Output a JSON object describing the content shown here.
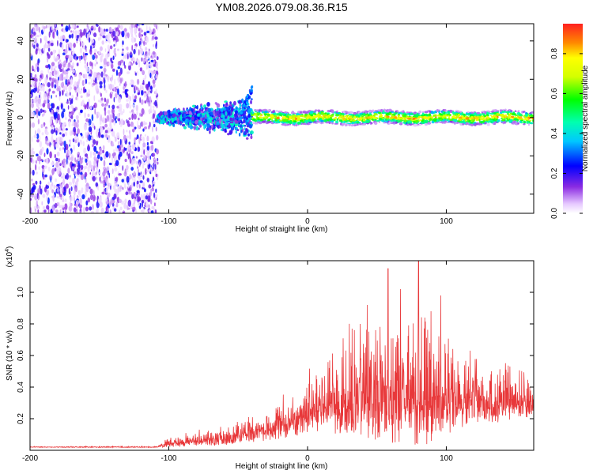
{
  "title": "YM08.2026.079.08.36.R15",
  "chart_data": [
    {
      "type": "heatmap",
      "xlabel": "Height of straight line (km)",
      "ylabel": "Frequency (Hz)",
      "xlim": [
        -200,
        163
      ],
      "ylim": [
        -50,
        49
      ],
      "x_ticks": [
        "-200",
        "-100",
        "0",
        "100"
      ],
      "y_ticks": [
        "-40",
        "-20",
        "0",
        "20",
        "40"
      ],
      "colorbar": {
        "label": "Normalized spectral amplitude",
        "range": [
          0.0,
          0.95
        ],
        "ticks": [
          "0.0",
          "0.2",
          "0.4",
          "0.6",
          "0.8"
        ]
      },
      "regions": [
        {
          "name": "noise",
          "x": [
            -200,
            -108
          ],
          "f": [
            -50,
            49
          ],
          "amplitude": 0.2
        },
        {
          "name": "onset",
          "x": [
            -108,
            -40
          ],
          "f": [
            -15,
            15
          ],
          "amplitude": 0.4
        },
        {
          "name": "signal-line",
          "x": [
            -40,
            163
          ],
          "f": [
            -3,
            3
          ],
          "amplitude": 0.85
        }
      ]
    },
    {
      "type": "line",
      "xlabel": "Height of straight line (km)",
      "ylabel": "SNR (10 * v/v)",
      "exponent_label": "(x10",
      "exponent_power": "4",
      "exponent_close": ")",
      "xlim": [
        -200,
        163
      ],
      "ylim": [
        0,
        1.2
      ],
      "x_ticks": [
        "-200",
        "-100",
        "0",
        "100"
      ],
      "y_ticks": [
        "0.2",
        "0.4",
        "0.6",
        "0.8",
        "1.0"
      ],
      "color": "#e8383a",
      "envelope": [
        {
          "x": -200,
          "base": 0.02,
          "amp": 0.005
        },
        {
          "x": -110,
          "base": 0.02,
          "amp": 0.006
        },
        {
          "x": -100,
          "base": 0.04,
          "amp": 0.05
        },
        {
          "x": -60,
          "base": 0.07,
          "amp": 0.1
        },
        {
          "x": -20,
          "base": 0.15,
          "amp": 0.2
        },
        {
          "x": 10,
          "base": 0.25,
          "amp": 0.38
        },
        {
          "x": 40,
          "base": 0.3,
          "amp": 0.62
        },
        {
          "x": 80,
          "base": 0.3,
          "amp": 0.75
        },
        {
          "x": 110,
          "base": 0.28,
          "amp": 0.4
        },
        {
          "x": 163,
          "base": 0.3,
          "amp": 0.22
        }
      ],
      "peaks": [
        {
          "x": 58,
          "y": 1.15
        },
        {
          "x": 80,
          "y": 1.2
        },
        {
          "x": 67,
          "y": 1.02
        },
        {
          "x": 43,
          "y": 0.92
        },
        {
          "x": 96,
          "y": 0.98
        },
        {
          "x": 38,
          "y": 0.8
        },
        {
          "x": 89,
          "y": 0.88
        }
      ]
    }
  ]
}
